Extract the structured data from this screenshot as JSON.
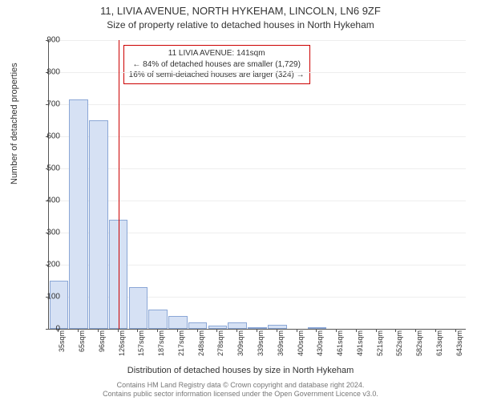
{
  "title": {
    "main": "11, LIVIA AVENUE, NORTH HYKEHAM, LINCOLN, LN6 9ZF",
    "sub": "Size of property relative to detached houses in North Hykeham",
    "main_fontsize": 13,
    "sub_fontsize": 12,
    "color": "#333333"
  },
  "chart": {
    "type": "histogram",
    "background_color": "#ffffff",
    "grid_color": "#eeeeee",
    "axis_color": "#555555",
    "bar_fill": "#d6e1f4",
    "bar_border": "#8ba7d6",
    "marker_color": "#cc0000",
    "ylabel": "Number of detached properties",
    "xlabel": "Distribution of detached houses by size in North Hykeham",
    "ylim": [
      0,
      900
    ],
    "ytick_step": 100,
    "categories": [
      "35sqm",
      "65sqm",
      "96sqm",
      "126sqm",
      "157sqm",
      "187sqm",
      "217sqm",
      "248sqm",
      "278sqm",
      "309sqm",
      "339sqm",
      "369sqm",
      "400sqm",
      "430sqm",
      "461sqm",
      "491sqm",
      "521sqm",
      "552sqm",
      "582sqm",
      "613sqm",
      "643sqm"
    ],
    "values": [
      150,
      715,
      650,
      340,
      130,
      60,
      40,
      20,
      10,
      20,
      5,
      12,
      0,
      4,
      0,
      0,
      0,
      0,
      0,
      0,
      0
    ],
    "marker_bin_index": 3,
    "annotation": {
      "line1": "11 LIVIA AVENUE: 141sqm",
      "line2": "← 84% of detached houses are smaller (1,729)",
      "line3": "16% of semi-detached houses are larger (324) →",
      "border_color": "#cc0000",
      "fontsize": 10
    }
  },
  "footer": {
    "line1": "Contains HM Land Registry data © Crown copyright and database right 2024.",
    "line2": "Contains public sector information licensed under the Open Government Licence v3.0.",
    "fontsize": 9,
    "color": "#777777"
  }
}
